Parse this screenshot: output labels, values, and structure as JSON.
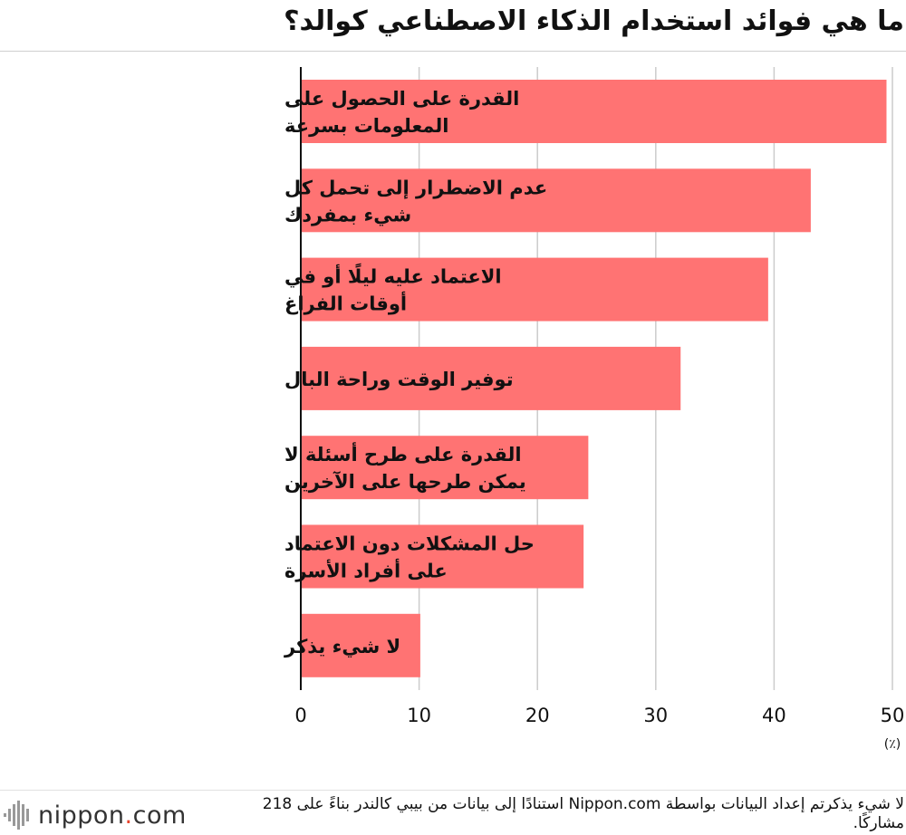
{
  "title": "ما هي فوائد استخدام الذكاء الاصطناعي كوالد؟",
  "chart_data": {
    "type": "bar",
    "orientation": "horizontal",
    "categories": [
      [
        "القدرة على الحصول على",
        "المعلومات بسرعة"
      ],
      [
        "عدم الاضطرار إلى تحمل كل",
        "شيء بمفردك"
      ],
      [
        "الاعتماد عليه ليلًا أو في",
        "أوقات الفراغ"
      ],
      [
        "توفير الوقت وراحة البال"
      ],
      [
        "القدرة على طرح أسئلة لا",
        "يمكن طرحها على الآخرين"
      ],
      [
        "حل المشكلات دون الاعتماد",
        "على أفراد الأسرة"
      ],
      [
        "لا شيء يذكر"
      ]
    ],
    "values": [
      49.5,
      43.1,
      39.5,
      32.1,
      24.3,
      23.9,
      10.1
    ],
    "xlim": [
      0,
      50
    ],
    "xticks": [
      "0",
      "10",
      "20",
      "30",
      "40",
      "50"
    ],
    "xlabel": "(٪)",
    "bar_color": "#ff7373",
    "grid": true,
    "legend": "none"
  },
  "note": "لا شيء يذكرتم إعداد البيانات بواسطة Nippon.com استنادًا إلى بيانات من بيبي كالندر بناءً على 218 مشاركًا.",
  "logo": {
    "name": "nippon",
    "dot": ".",
    "suffix": "com"
  }
}
